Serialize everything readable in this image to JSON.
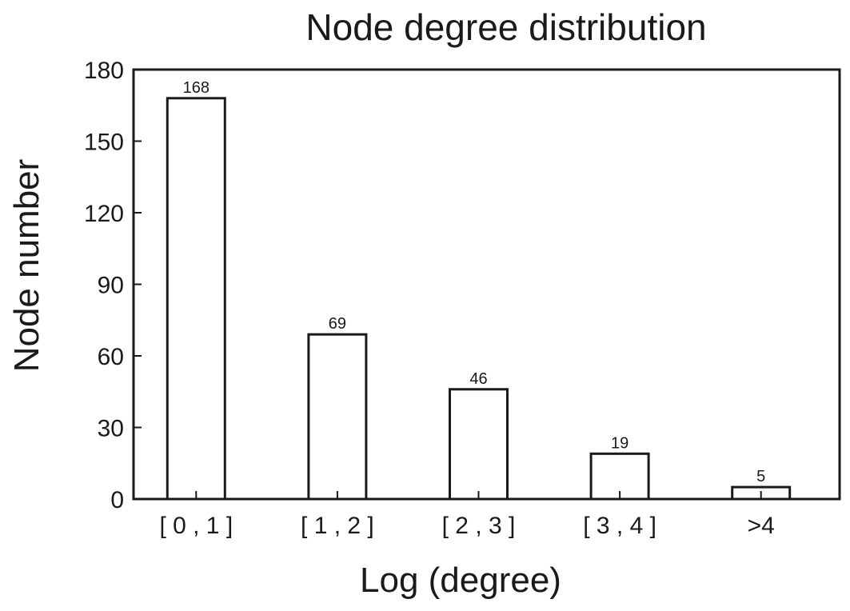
{
  "chart_data": {
    "type": "bar",
    "title": "Node degree distribution",
    "xlabel": "Log (degree)",
    "ylabel": "Node number",
    "categories": [
      "[ 0 , 1 ]",
      "[ 1 , 2 ]",
      "[ 2 , 3 ]",
      "[ 3 , 4 ]",
      ">4"
    ],
    "values": [
      168,
      69,
      46,
      19,
      5
    ],
    "data_labels": [
      "168",
      "69",
      "46",
      "19",
      "5"
    ],
    "ylim": [
      0,
      180
    ],
    "yticks": [
      0,
      30,
      60,
      90,
      120,
      150,
      180
    ],
    "ytick_labels": [
      "0",
      "30",
      "60",
      "90",
      "120",
      "150",
      "180"
    ],
    "grid": false,
    "legend": "none",
    "colors": {
      "bar_fill": "#ffffff",
      "bar_stroke": "#1a1a1a",
      "axis": "#1a1a1a"
    }
  }
}
